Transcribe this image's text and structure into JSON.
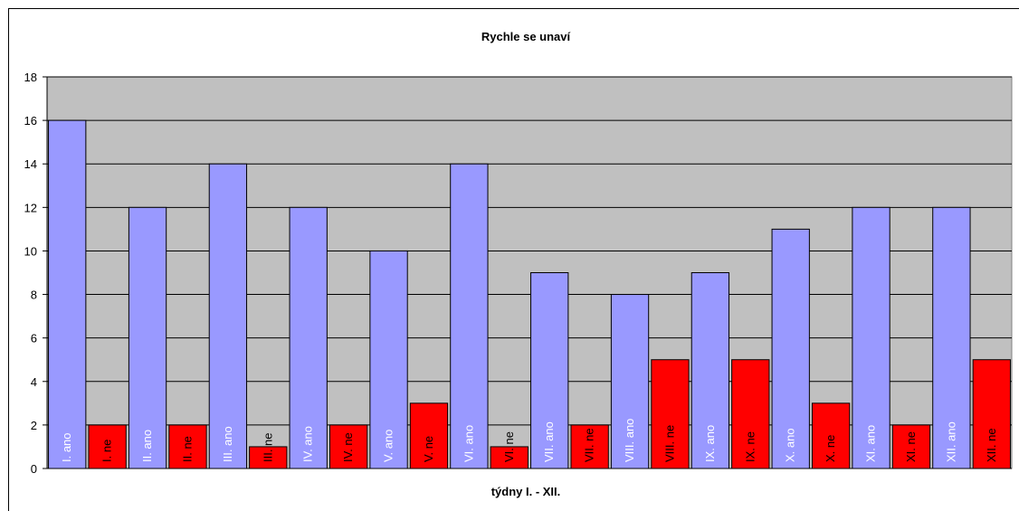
{
  "chart_data": {
    "type": "bar",
    "title": "Rychle se unaví",
    "xlabel": "týdny I. - XII.",
    "ylabel": "",
    "ylim": [
      0,
      18
    ],
    "yticks": [
      0,
      2,
      4,
      6,
      8,
      10,
      12,
      14,
      16,
      18
    ],
    "grid": true,
    "legend": "none",
    "plot_background": "#c0c0c0",
    "bars": [
      {
        "label": "I. ano",
        "value": 16,
        "color": "#9999ff"
      },
      {
        "label": "I. ne",
        "value": 2,
        "color": "#ff0000"
      },
      {
        "label": "II. ano",
        "value": 12,
        "color": "#9999ff"
      },
      {
        "label": "II. ne",
        "value": 2,
        "color": "#ff0000"
      },
      {
        "label": "III. ano",
        "value": 14,
        "color": "#9999ff"
      },
      {
        "label": "III. ne",
        "value": 1,
        "color": "#ff0000"
      },
      {
        "label": "IV. ano",
        "value": 12,
        "color": "#9999ff"
      },
      {
        "label": "IV. ne",
        "value": 2,
        "color": "#ff0000"
      },
      {
        "label": "V. ano",
        "value": 10,
        "color": "#9999ff"
      },
      {
        "label": "V. ne",
        "value": 3,
        "color": "#ff0000"
      },
      {
        "label": "VI. ano",
        "value": 14,
        "color": "#9999ff"
      },
      {
        "label": "VI. ne",
        "value": 1,
        "color": "#ff0000"
      },
      {
        "label": "VII. ano",
        "value": 9,
        "color": "#9999ff"
      },
      {
        "label": "VII. ne",
        "value": 2,
        "color": "#ff0000"
      },
      {
        "label": "VIII. ano",
        "value": 8,
        "color": "#9999ff"
      },
      {
        "label": "VIII. ne",
        "value": 5,
        "color": "#ff0000"
      },
      {
        "label": "IX. ano",
        "value": 9,
        "color": "#9999ff"
      },
      {
        "label": "IX. ne",
        "value": 5,
        "color": "#ff0000"
      },
      {
        "label": "X. ano",
        "value": 11,
        "color": "#9999ff"
      },
      {
        "label": "X. ne",
        "value": 3,
        "color": "#ff0000"
      },
      {
        "label": "XI. ano",
        "value": 12,
        "color": "#9999ff"
      },
      {
        "label": "XI. ne",
        "value": 2,
        "color": "#ff0000"
      },
      {
        "label": "XII. ano",
        "value": 12,
        "color": "#9999ff"
      },
      {
        "label": "XII. ne",
        "value": 5,
        "color": "#ff0000"
      }
    ]
  }
}
